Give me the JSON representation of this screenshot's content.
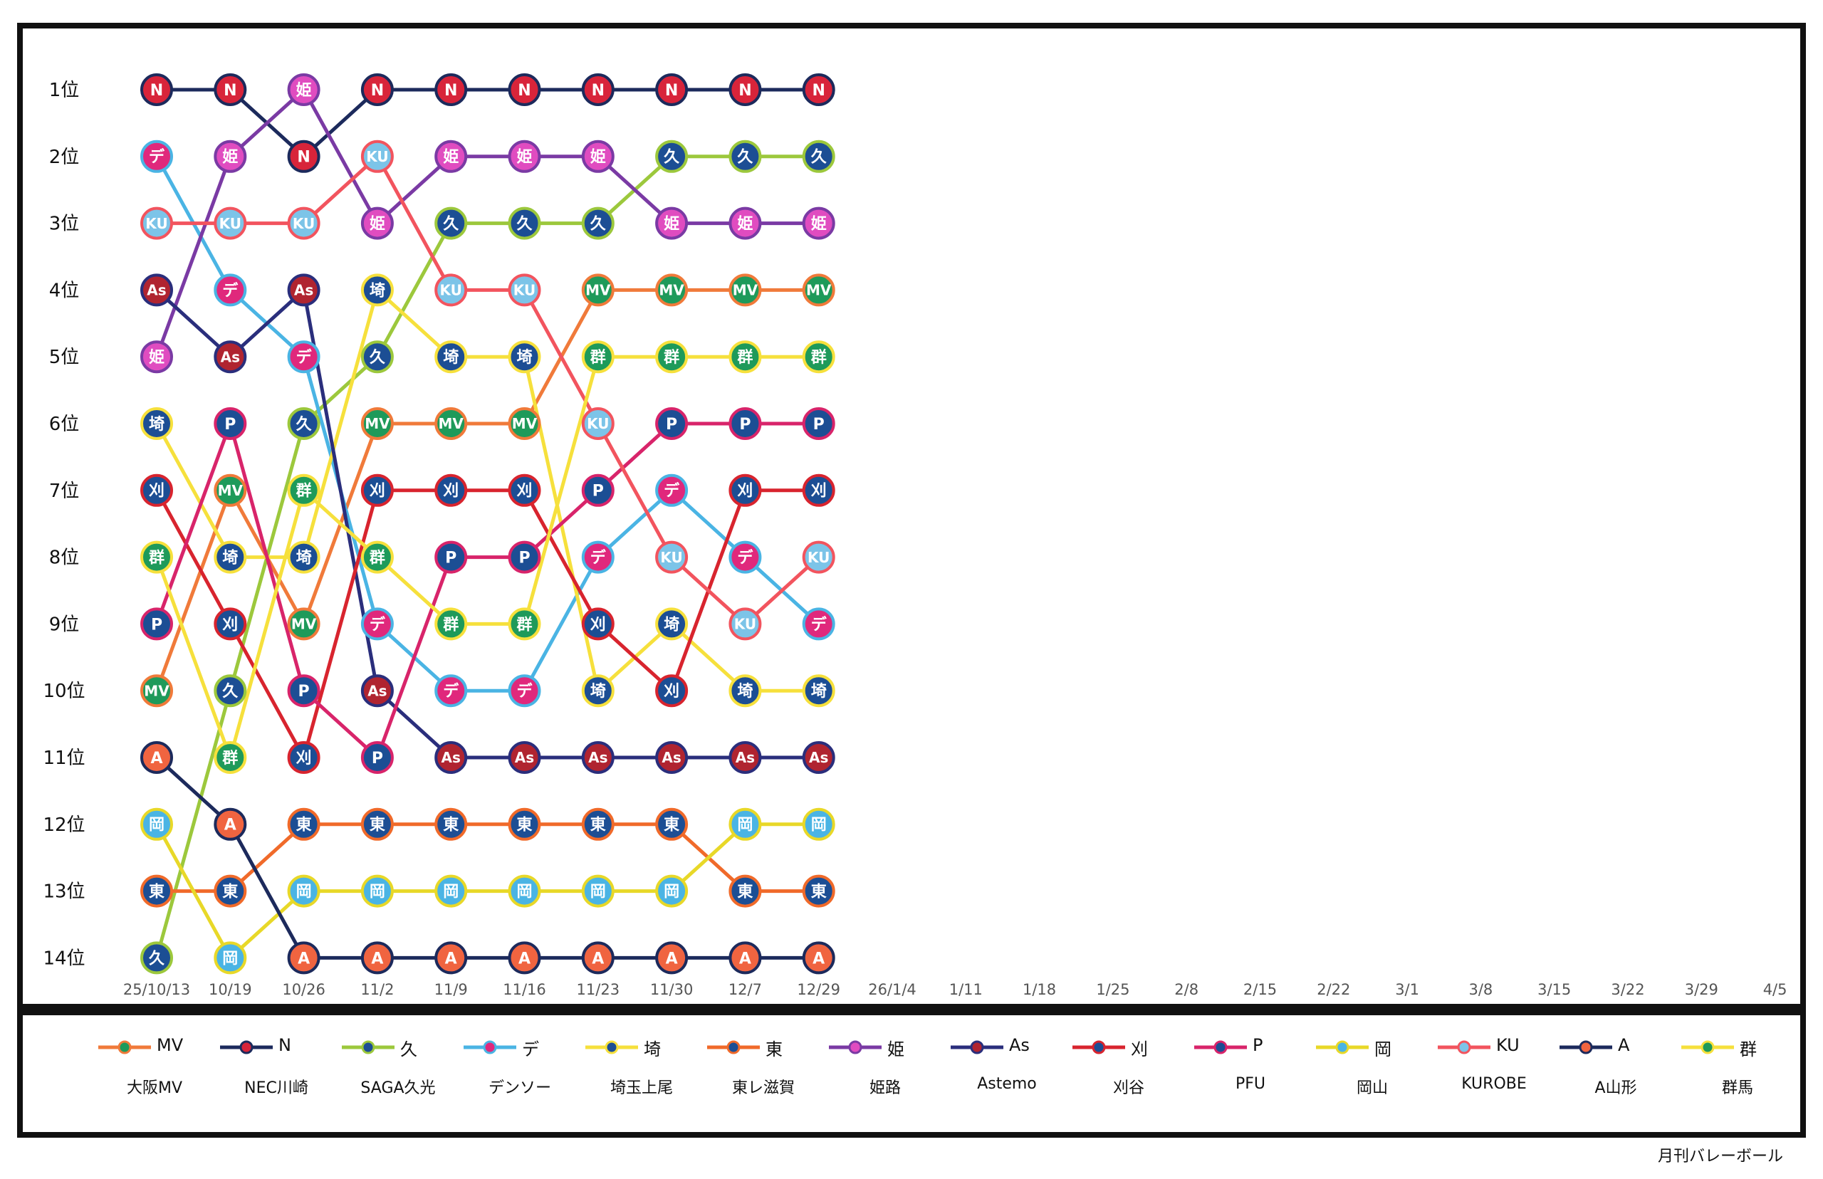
{
  "source": "月刊バレーボール",
  "chart_data": {
    "type": "line",
    "y_labels": [
      "1位",
      "2位",
      "3位",
      "4位",
      "5位",
      "6位",
      "7位",
      "8位",
      "9位",
      "10位",
      "11位",
      "12位",
      "13位",
      "14位"
    ],
    "x_labels": [
      "25/10/13",
      "10/19",
      "10/26",
      "11/2",
      "11/9",
      "11/16",
      "11/23",
      "11/30",
      "12/7",
      "12/29",
      "26/1/4",
      "1/11",
      "1/18",
      "1/25",
      "2/8",
      "2/15",
      "2/22",
      "3/1",
      "3/8",
      "3/15",
      "3/22",
      "3/29",
      "4/5"
    ],
    "y_reversed": true,
    "ylim": [
      1,
      14
    ],
    "grid": false,
    "legend_position": "bottom",
    "series": [
      {
        "abbr": "MV",
        "name": "大阪MV",
        "line": "#f07a3a",
        "fill": "#1e9a5a",
        "ring": "#f07a3a",
        "text": "#ffffff",
        "ranks": [
          10,
          7,
          9,
          6,
          6,
          6,
          4,
          4,
          4,
          4
        ]
      },
      {
        "abbr": "N",
        "name": "NEC川崎",
        "line": "#1c2a5c",
        "fill": "#d8243a",
        "ring": "#1c2a5c",
        "text": "#ffffff",
        "ranks": [
          1,
          1,
          2,
          1,
          1,
          1,
          1,
          1,
          1,
          1
        ]
      },
      {
        "abbr": "久",
        "name": "SAGA久光",
        "line": "#9cc83c",
        "fill": "#1c4e94",
        "ring": "#9cc83c",
        "text": "#ffffff",
        "ranks": [
          14,
          10,
          6,
          5,
          3,
          3,
          3,
          2,
          2,
          2
        ]
      },
      {
        "abbr": "デ",
        "name": "デンソー",
        "line": "#4ab4e4",
        "fill": "#e0287c",
        "ring": "#4ab4e4",
        "text": "#ffffff",
        "ranks": [
          2,
          4,
          5,
          9,
          10,
          10,
          8,
          7,
          8,
          9
        ]
      },
      {
        "abbr": "埼",
        "name": "埼玉上尾",
        "line": "#f6e03c",
        "fill": "#1c4e94",
        "ring": "#f6e03c",
        "text": "#ffffff",
        "ranks": [
          6,
          8,
          8,
          4,
          5,
          5,
          10,
          9,
          10,
          10
        ]
      },
      {
        "abbr": "東",
        "name": "東レ滋賀",
        "line": "#f06a2a",
        "fill": "#1c4e94",
        "ring": "#f06a2a",
        "text": "#ffffff",
        "ranks": [
          13,
          13,
          12,
          12,
          12,
          12,
          12,
          12,
          13,
          13
        ]
      },
      {
        "abbr": "姫",
        "name": "姫路",
        "line": "#7a3aa4",
        "fill": "#e04cc0",
        "ring": "#7a3aa4",
        "text": "#ffffff",
        "ranks": [
          5,
          2,
          1,
          3,
          2,
          2,
          2,
          3,
          3,
          3
        ]
      },
      {
        "abbr": "As",
        "name": "Astemo",
        "line": "#2a2e7c",
        "fill": "#b02430",
        "ring": "#2a2e7c",
        "text": "#ffffff",
        "ranks": [
          4,
          5,
          4,
          10,
          11,
          11,
          11,
          11,
          11,
          11
        ]
      },
      {
        "abbr": "刈",
        "name": "刈谷",
        "line": "#d8242e",
        "fill": "#1c4e94",
        "ring": "#d8242e",
        "text": "#ffffff",
        "ranks": [
          7,
          9,
          11,
          7,
          7,
          7,
          9,
          10,
          7,
          7
        ]
      },
      {
        "abbr": "P",
        "name": "PFU",
        "line": "#d8246a",
        "fill": "#1c4e94",
        "ring": "#d8246a",
        "text": "#ffffff",
        "ranks": [
          9,
          6,
          10,
          11,
          8,
          8,
          7,
          6,
          6,
          6
        ]
      },
      {
        "abbr": "岡",
        "name": "岡山",
        "line": "#e8d828",
        "fill": "#4ab4e4",
        "ring": "#e8d828",
        "text": "#ffffff",
        "ranks": [
          12,
          14,
          13,
          13,
          13,
          13,
          13,
          13,
          12,
          12
        ]
      },
      {
        "abbr": "KU",
        "name": "KUROBE",
        "line": "#f2545e",
        "fill": "#7cc4e8",
        "ring": "#f2545e",
        "text": "#ffffff",
        "ranks": [
          3,
          3,
          3,
          2,
          4,
          4,
          6,
          8,
          9,
          8
        ]
      },
      {
        "abbr": "A",
        "name": "A山形",
        "line": "#1c2a5c",
        "fill": "#f06440",
        "ring": "#1c2a5c",
        "text": "#ffffff",
        "ranks": [
          11,
          12,
          14,
          14,
          14,
          14,
          14,
          14,
          14,
          14
        ]
      },
      {
        "abbr": "群",
        "name": "群馬",
        "line": "#f6e03c",
        "fill": "#1e9a5a",
        "ring": "#f6e03c",
        "text": "#ffffff",
        "ranks": [
          8,
          11,
          7,
          8,
          9,
          9,
          5,
          5,
          5,
          5
        ]
      }
    ]
  }
}
